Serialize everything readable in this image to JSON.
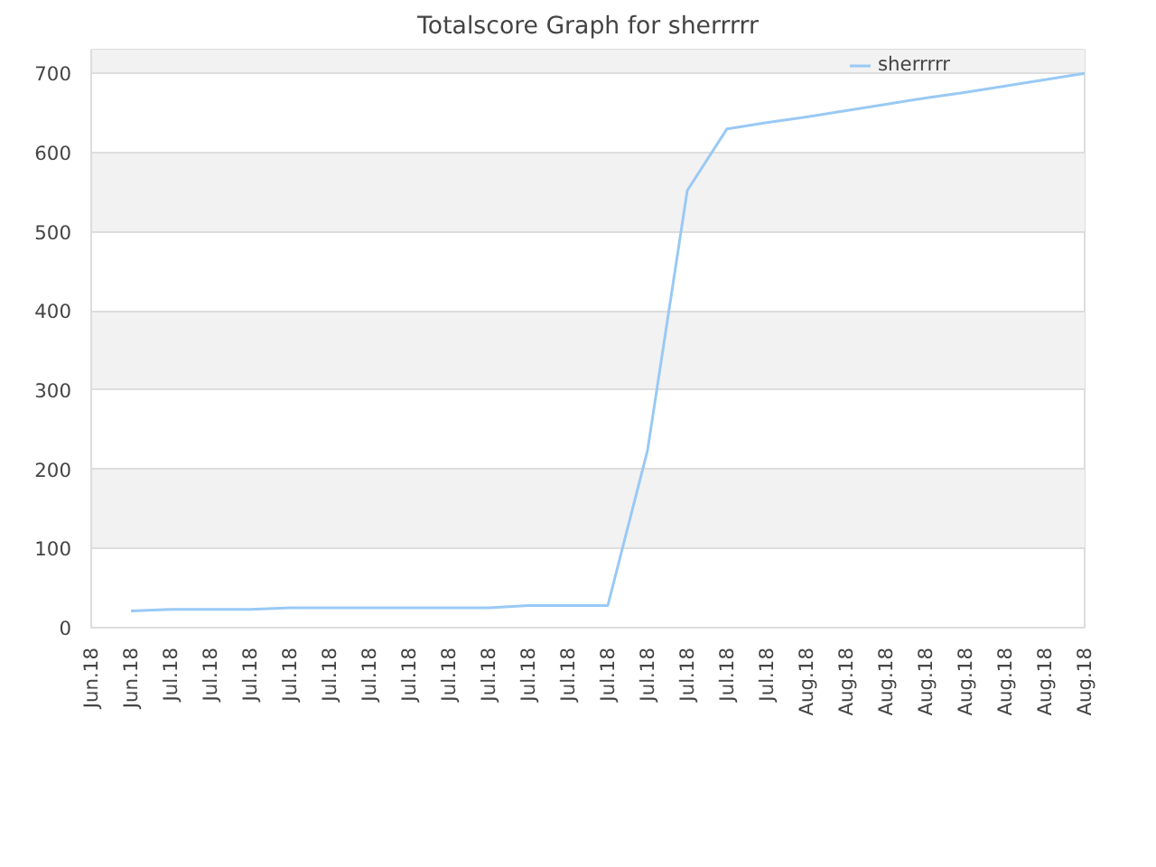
{
  "chart_data": {
    "type": "line",
    "title": "Totalscore Graph for sherrrrr",
    "categories": [
      "Jun.18",
      "Jun.18",
      "Jul.18",
      "Jul.18",
      "Jul.18",
      "Jul.18",
      "Jul.18",
      "Jul.18",
      "Jul.18",
      "Jul.18",
      "Jul.18",
      "Jul.18",
      "Jul.18",
      "Jul.18",
      "Jul.18",
      "Jul.18",
      "Jul.18",
      "Jul.18",
      "Aug.18",
      "Aug.18",
      "Aug.18",
      "Aug.18",
      "Aug.18",
      "Aug.18",
      "Aug.18",
      "Aug.18"
    ],
    "ylim": [
      0,
      730
    ],
    "yticks": [
      0,
      100,
      200,
      300,
      400,
      500,
      600,
      700
    ],
    "grid": "y",
    "legend": "top right",
    "series": [
      {
        "name": "sherrrrr",
        "color": "#99c9f5",
        "values": [
          null,
          21,
          23,
          23,
          23,
          25,
          25,
          25,
          25,
          25,
          25,
          28,
          28,
          28,
          224,
          552,
          630,
          638,
          645,
          653,
          661,
          669,
          676,
          684,
          692,
          700
        ]
      }
    ]
  }
}
